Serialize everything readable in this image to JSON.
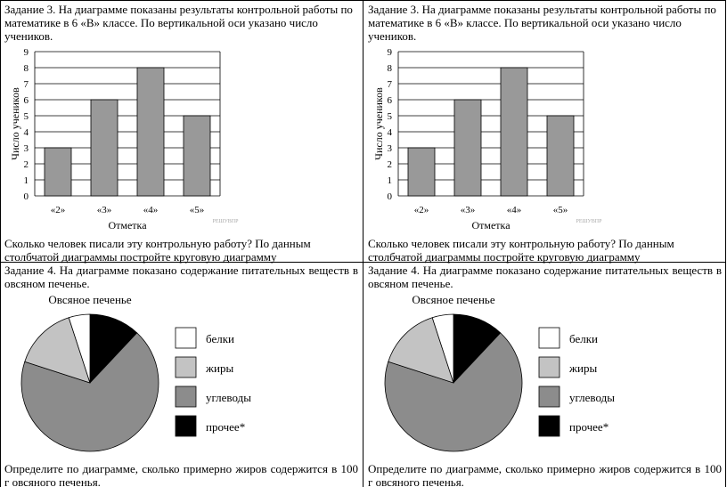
{
  "cells": [
    {
      "task3_text": "Задание 3. На диаграмме показаны результаты контрольной работы по математике в 6 «В» классе. По вертикальной оси указано число учеников.",
      "task3_question": "Сколько человек писали эту контрольную работу? По данным столбчатой диаграммы постройте круговую диаграмму",
      "task4_text": "Задание 4. На диаграмме показано содержание питательных веществ в овсяном печенье.",
      "task4_question": "Определите по диаграмме, сколько примерно жиров содержится в 100 г овсяного печенья."
    },
    {
      "task3_text": "Задание 3. На диаграмме показаны результаты контрольной работы по математике в 6 «В» классе. По вертикальной оси указано число учеников.",
      "task3_question": "Сколько человек писали эту контрольную работу? По данным столбчатой диаграммы постройте круговую диаграмму",
      "task4_text": "Задание 4. На диаграмме показано содержание питательных веществ в овсяном печенье.",
      "task4_question": "Определите по диаграмме, сколько примерно жиров содержится в 100 г овсяного печенья."
    }
  ],
  "chart_data": [
    {
      "type": "bar",
      "categories": [
        "«2»",
        "«3»",
        "«4»",
        "«5»"
      ],
      "values": [
        3,
        6,
        8,
        5
      ],
      "xlabel": "Отметка",
      "ylabel": "Число учеников",
      "ylim": [
        0,
        9
      ],
      "yticks": [
        "0",
        "1",
        "2",
        "3",
        "4",
        "5",
        "6",
        "7",
        "8",
        "9"
      ],
      "grid": true,
      "watermark": "РЕШУВПР",
      "bar_color": "#999999"
    },
    {
      "type": "pie",
      "title": "Овсяное печенье",
      "labels": [
        "белки",
        "жиры",
        "углеводы",
        "прочее*"
      ],
      "values": [
        5,
        15,
        68,
        12
      ],
      "colors": [
        "#ffffff",
        "#c3c3c3",
        "#8c8c8c",
        "#000000"
      ],
      "legend": "right"
    }
  ]
}
